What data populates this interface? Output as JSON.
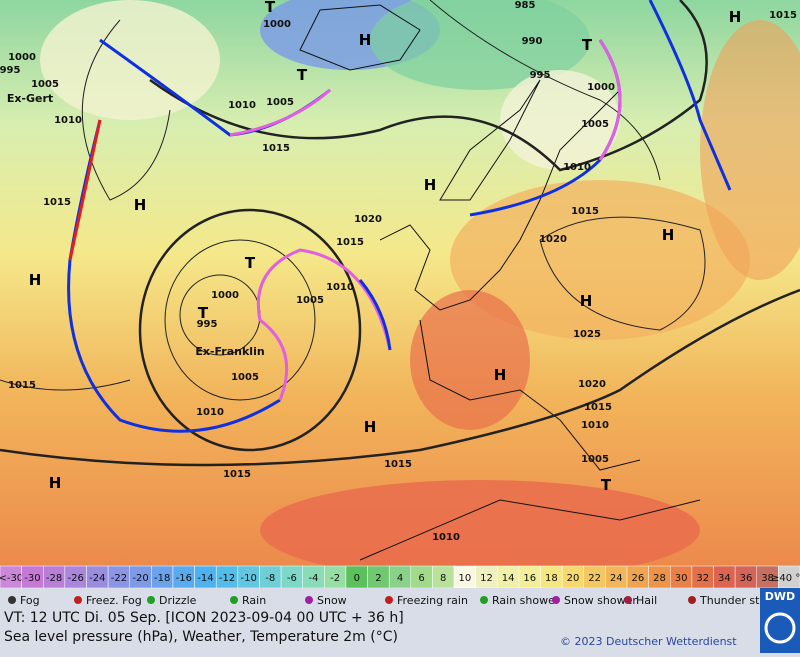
{
  "map": {
    "isobar_labels": [
      "1000",
      "995",
      "1005",
      "1010",
      "1015",
      "1000",
      "1010",
      "1005",
      "1015",
      "1020",
      "1015",
      "1010",
      "1005",
      "1000",
      "995",
      "1005",
      "1010",
      "1015",
      "990",
      "995",
      "1000",
      "1005",
      "1010",
      "1015",
      "1020",
      "1025",
      "1020",
      "1015",
      "1010",
      "1005",
      "1015",
      "1010",
      "1015",
      "985",
      "1015"
    ],
    "centers": [
      "H",
      "T",
      "H",
      "T",
      "T",
      "H",
      "H",
      "H",
      "T",
      "T",
      "H",
      "H",
      "H",
      "H",
      "H",
      "T"
    ],
    "names": [
      "Ex-Gert",
      "Ex-Franklin"
    ]
  },
  "scale": {
    "low_label": "<-30",
    "low_color": "#cc88d8",
    "values": [
      -30,
      -28,
      -26,
      -24,
      -22,
      -20,
      -18,
      -16,
      -14,
      -12,
      -10,
      -8,
      -6,
      -4,
      -2,
      0,
      2,
      4,
      6,
      8,
      10,
      12,
      14,
      16,
      18,
      20,
      22,
      24,
      26,
      28,
      30,
      32,
      34,
      36,
      38
    ],
    "colors": [
      "#c678d6",
      "#b97ed8",
      "#aa86dc",
      "#9a8de0",
      "#8c94e4",
      "#7d9ae8",
      "#6aa3ec",
      "#5aaaf0",
      "#4eb2f0",
      "#54bce8",
      "#62c6e0",
      "#70cfd6",
      "#7ed8c8",
      "#8adcb6",
      "#96dea4",
      "#5cc05c",
      "#70c870",
      "#8ad28a",
      "#a0da8a",
      "#b8e29a",
      "#f8f8e4",
      "#eef0c0",
      "#f0f0a8",
      "#f4ee96",
      "#f6e680",
      "#f6d86c",
      "#f4c860",
      "#f2b658",
      "#f0a450",
      "#ee9448",
      "#ea8048",
      "#e4704a",
      "#dc6450",
      "#d46458",
      "#c87060"
    ],
    "high_label": "≥40 °C",
    "high_color": "#d0d0d0"
  },
  "weather_legend": [
    "Fog",
    "Freez. Fog",
    "Drizzle",
    "Rain",
    "Snow",
    "Freezing rain",
    "Rain shower",
    "Snow shower",
    "Hail",
    "Thunder storm"
  ],
  "caption": {
    "valid_time": "VT: 12 UTC Di.  05 Sep. [ICON 2023-09-04  00 UTC + 36 h]",
    "description": "Sea level pressure (hPa), Weather, Temperature 2m (°C)",
    "copyright": "© 2023 Deutscher Wetterdienst",
    "logo": "DWD"
  }
}
